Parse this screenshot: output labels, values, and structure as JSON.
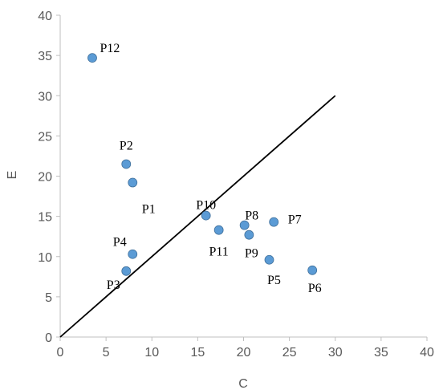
{
  "chart_data": {
    "type": "scatter",
    "title": "",
    "xlabel": "C",
    "ylabel": "E",
    "xlim": [
      0,
      40
    ],
    "ylim": [
      0,
      40
    ],
    "xticks": [
      "0",
      "5",
      "10",
      "15",
      "20",
      "25",
      "30",
      "35",
      "40"
    ],
    "yticks": [
      "0",
      "5",
      "10",
      "15",
      "20",
      "25",
      "30",
      "35",
      "40"
    ],
    "grid": false,
    "legend": "none",
    "colors": {
      "marker": "#5b9bd5",
      "marker_edge": "#41719c",
      "line": "#000000",
      "axis": "#bfbfbf",
      "text": "#595959"
    },
    "reference_line": {
      "x": [
        0,
        30
      ],
      "y": [
        0,
        30
      ]
    },
    "points": [
      {
        "label": "P1",
        "x": 7.9,
        "y": 19.2
      },
      {
        "label": "P2",
        "x": 7.2,
        "y": 21.5
      },
      {
        "label": "P3",
        "x": 7.2,
        "y": 8.2
      },
      {
        "label": "P4",
        "x": 7.9,
        "y": 10.3
      },
      {
        "label": "P5",
        "x": 22.8,
        "y": 9.6
      },
      {
        "label": "P6",
        "x": 27.5,
        "y": 8.3
      },
      {
        "label": "P7",
        "x": 23.3,
        "y": 14.3
      },
      {
        "label": "P8",
        "x": 20.1,
        "y": 13.9
      },
      {
        "label": "P9",
        "x": 20.6,
        "y": 12.7
      },
      {
        "label": "P10",
        "x": 15.9,
        "y": 15.1
      },
      {
        "label": "P11",
        "x": 17.3,
        "y": 13.3
      },
      {
        "label": "P12",
        "x": 3.5,
        "y": 34.7
      }
    ]
  }
}
